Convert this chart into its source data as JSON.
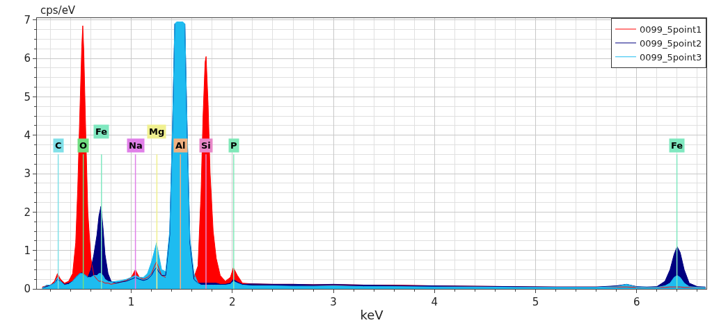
{
  "chart_data": {
    "type": "area",
    "xlabel": "keV",
    "ylabel": "cps/eV",
    "x": [
      0.12,
      0.16,
      0.2,
      0.24,
      0.27,
      0.3,
      0.34,
      0.38,
      0.42,
      0.45,
      0.47,
      0.49,
      0.51,
      0.52,
      0.53,
      0.55,
      0.57,
      0.6,
      0.63,
      0.66,
      0.68,
      0.7,
      0.72,
      0.74,
      0.77,
      0.8,
      0.85,
      0.9,
      0.95,
      1.0,
      1.04,
      1.08,
      1.12,
      1.16,
      1.2,
      1.23,
      1.25,
      1.27,
      1.3,
      1.34,
      1.38,
      1.41,
      1.43,
      1.45,
      1.48,
      1.51,
      1.53,
      1.55,
      1.58,
      1.62,
      1.66,
      1.69,
      1.71,
      1.73,
      1.74,
      1.76,
      1.78,
      1.81,
      1.84,
      1.88,
      1.93,
      1.98,
      2.01,
      2.05,
      2.1,
      2.2,
      2.4,
      2.6,
      2.8,
      3.0,
      3.3,
      3.6,
      4.0,
      4.4,
      4.8,
      5.2,
      5.6,
      5.8,
      5.9,
      6.0,
      6.1,
      6.2,
      6.28,
      6.33,
      6.37,
      6.4,
      6.43,
      6.47,
      6.52,
      6.6,
      6.68
    ],
    "series": [
      {
        "name": "0099_5point1",
        "color": "#ff0000",
        "values": [
          0.05,
          0.08,
          0.1,
          0.2,
          0.4,
          0.25,
          0.15,
          0.2,
          0.4,
          1.2,
          2.6,
          4.5,
          6.3,
          6.85,
          6.2,
          4.0,
          2.0,
          0.8,
          0.35,
          0.25,
          0.2,
          0.2,
          0.18,
          0.15,
          0.15,
          0.12,
          0.15,
          0.18,
          0.22,
          0.3,
          0.5,
          0.3,
          0.25,
          0.3,
          0.4,
          0.6,
          0.7,
          0.55,
          0.35,
          0.3,
          null,
          null,
          null,
          null,
          null,
          null,
          null,
          null,
          null,
          0.3,
          0.6,
          2.5,
          4.5,
          5.9,
          6.05,
          4.8,
          3.0,
          1.5,
          0.8,
          0.35,
          0.2,
          0.3,
          0.55,
          0.35,
          0.15,
          0.13,
          0.12,
          0.12,
          0.11,
          0.11,
          0.1,
          0.1,
          0.08,
          0.07,
          0.06,
          0.05,
          0.05,
          0.05,
          0.05,
          0.04,
          0.04,
          0.04,
          0.04,
          0.05,
          0.05,
          0.05,
          0.05,
          0.04,
          0.04,
          0.04,
          0.04
        ]
      },
      {
        "name": "0099_5point2",
        "color": "#000080",
        "values": [
          0.03,
          0.06,
          0.1,
          0.15,
          0.25,
          0.2,
          0.12,
          0.15,
          0.2,
          0.3,
          0.35,
          0.4,
          0.42,
          0.4,
          0.38,
          0.35,
          0.3,
          0.5,
          0.9,
          1.4,
          1.9,
          2.15,
          1.6,
          0.9,
          0.4,
          0.2,
          0.15,
          0.18,
          0.2,
          0.25,
          0.3,
          0.25,
          0.22,
          0.25,
          0.35,
          0.5,
          0.55,
          0.45,
          0.35,
          0.35,
          1.4,
          4.4,
          6.9,
          null,
          null,
          null,
          6.9,
          4.4,
          1.2,
          0.25,
          0.15,
          0.15,
          0.15,
          0.15,
          0.15,
          0.15,
          0.15,
          0.15,
          0.15,
          0.12,
          0.12,
          0.15,
          0.25,
          0.18,
          0.12,
          0.13,
          0.12,
          0.12,
          0.11,
          0.12,
          0.1,
          0.09,
          0.08,
          0.07,
          0.06,
          0.05,
          0.05,
          0.08,
          0.12,
          0.06,
          0.05,
          0.06,
          0.2,
          0.5,
          0.9,
          1.1,
          0.95,
          0.5,
          0.15,
          0.06,
          0.05
        ]
      },
      {
        "name": "0099_5point3",
        "color": "#1ebcf0",
        "values": [
          0.02,
          0.1,
          0.1,
          0.15,
          0.3,
          0.2,
          0.1,
          0.12,
          0.2,
          0.3,
          0.35,
          0.4,
          0.4,
          0.4,
          0.38,
          0.35,
          0.3,
          0.3,
          0.35,
          0.35,
          0.4,
          0.4,
          0.35,
          0.25,
          0.2,
          0.18,
          0.2,
          0.22,
          0.25,
          0.3,
          0.35,
          0.3,
          0.3,
          0.4,
          0.7,
          1.0,
          1.2,
          0.9,
          0.5,
          0.45,
          1.5,
          4.5,
          6.9,
          6.95,
          6.95,
          6.95,
          6.9,
          4.5,
          1.3,
          0.4,
          0.15,
          0.1,
          0.1,
          0.1,
          0.1,
          0.1,
          0.1,
          0.1,
          0.1,
          0.1,
          0.1,
          0.12,
          0.2,
          0.15,
          0.1,
          0.08,
          0.08,
          0.07,
          0.07,
          0.08,
          0.06,
          0.06,
          0.05,
          0.05,
          0.04,
          0.04,
          0.04,
          0.06,
          0.12,
          0.05,
          0.04,
          0.04,
          0.08,
          0.15,
          0.3,
          0.35,
          0.3,
          0.15,
          0.06,
          0.04,
          0.04
        ]
      }
    ],
    "ref_lines": [
      {
        "axis": "x",
        "value": 0.277,
        "label": "C",
        "color": "#80e0e8"
      },
      {
        "axis": "x",
        "value": 0.525,
        "label": "O",
        "color": "#70dd80"
      },
      {
        "axis": "x",
        "value": 0.705,
        "label": "Fe",
        "color": "#80e8c0"
      },
      {
        "axis": "x",
        "value": 1.041,
        "label": "Na",
        "color": "#e080e8"
      },
      {
        "axis": "x",
        "value": 1.253,
        "label": "Mg",
        "color": "#f0f090"
      },
      {
        "axis": "x",
        "value": 1.486,
        "label": "Al",
        "color": "#f0b080"
      },
      {
        "axis": "x",
        "value": 1.739,
        "label": "Si",
        "color": "#e888c8"
      },
      {
        "axis": "x",
        "value": 2.013,
        "label": "P",
        "color": "#80e8b8"
      },
      {
        "axis": "x",
        "value": 6.398,
        "label": "Fe",
        "color": "#80e8c0"
      }
    ],
    "xlim": [
      0.066,
      6.69
    ],
    "xticks": [
      1,
      2,
      3,
      4,
      5,
      6
    ],
    "ylim": [
      0,
      7.05
    ],
    "yticks": [
      0,
      1,
      2,
      3,
      4,
      5,
      6,
      7
    ],
    "grid": true,
    "legend": "top right"
  }
}
